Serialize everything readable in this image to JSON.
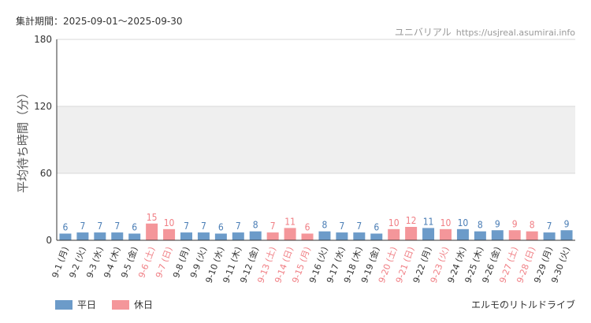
{
  "header": {
    "period_label": "集計期間：2025-09-01～2025-09-30",
    "site_name": "ユニバリアル",
    "site_url": "https://usjreal.asumirai.info"
  },
  "attraction": "エルモのリトルドライブ",
  "colors": {
    "weekday": "#6c9bc9",
    "holiday": "#f4969a",
    "weekday_label": "#4a7db5",
    "holiday_label": "#f07e84",
    "band": "#efefef",
    "grid": "#d9d9d9",
    "axis": "#333333"
  },
  "chart_data": {
    "type": "bar",
    "ylabel": "平均待ち時間（分）",
    "ylim": [
      0,
      180
    ],
    "yticks": [
      0,
      60,
      120,
      180
    ],
    "band": [
      60,
      120
    ],
    "legend": {
      "placement": "bottom-left",
      "weekday": "平日",
      "holiday": "休日"
    },
    "categories": [
      "9-1 (月)",
      "9-2 (火)",
      "9-3 (水)",
      "9-4 (木)",
      "9-5 (金)",
      "9-6 (土)",
      "9-7 (日)",
      "9-8 (月)",
      "9-9 (火)",
      "9-10 (水)",
      "9-11 (木)",
      "9-12 (金)",
      "9-13 (土)",
      "9-14 (日)",
      "9-15 (月)",
      "9-16 (火)",
      "9-17 (水)",
      "9-18 (木)",
      "9-19 (金)",
      "9-20 (土)",
      "9-21 (日)",
      "9-22 (月)",
      "9-23 (火)",
      "9-24 (水)",
      "9-25 (木)",
      "9-26 (金)",
      "9-27 (土)",
      "9-28 (日)",
      "9-29 (月)",
      "9-30 (火)"
    ],
    "values": [
      6,
      7,
      7,
      7,
      6,
      15,
      10,
      7,
      7,
      6,
      7,
      8,
      7,
      11,
      6,
      8,
      7,
      7,
      6,
      10,
      12,
      11,
      10,
      10,
      8,
      9,
      9,
      8,
      7,
      9
    ],
    "day_type": [
      "weekday",
      "weekday",
      "weekday",
      "weekday",
      "weekday",
      "holiday",
      "holiday",
      "weekday",
      "weekday",
      "weekday",
      "weekday",
      "weekday",
      "holiday",
      "holiday",
      "holiday",
      "weekday",
      "weekday",
      "weekday",
      "weekday",
      "holiday",
      "holiday",
      "weekday",
      "holiday",
      "weekday",
      "weekday",
      "weekday",
      "holiday",
      "holiday",
      "weekday",
      "weekday"
    ]
  }
}
